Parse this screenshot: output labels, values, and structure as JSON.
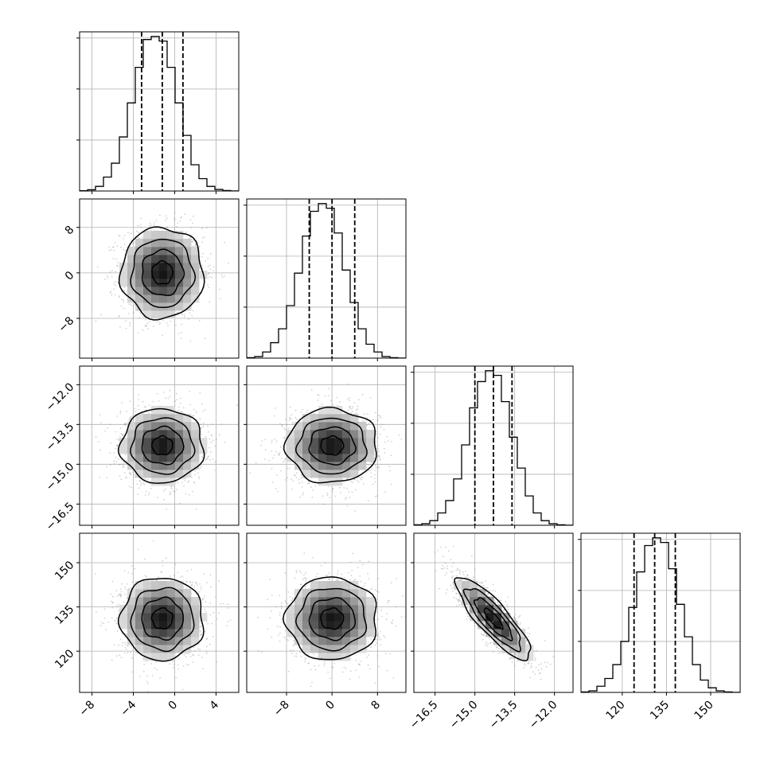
{
  "chart_data": {
    "type": "corner",
    "parameters": [
      {
        "index": 0,
        "range": [
          -9.2,
          6.2
        ],
        "ticks": [
          -8,
          -4,
          0,
          4
        ],
        "tick_labels": [
          "−8",
          "−4",
          "0",
          "4"
        ],
        "quantiles": [
          -3.2,
          -1.2,
          0.8
        ],
        "hist_bin_edges": [
          -9.2,
          -8.43,
          -7.66,
          -6.89,
          -6.12,
          -5.35,
          -4.58,
          -3.81,
          -3.04,
          -2.27,
          -1.5,
          -0.73,
          0.04,
          0.81,
          1.58,
          2.35,
          3.12,
          3.89,
          4.66,
          5.43,
          6.2
        ],
        "hist_values": [
          0.2,
          0.8,
          3,
          9,
          18,
          35,
          57,
          80,
          98,
          100,
          97,
          80,
          57,
          36,
          17,
          8,
          3,
          1,
          0.3,
          0.05
        ]
      },
      {
        "index": 1,
        "range": [
          -15,
          13
        ],
        "ticks": [
          -8,
          0,
          8
        ],
        "tick_labels": [
          "−8",
          "0",
          "8"
        ],
        "quantiles": [
          -4,
          0,
          4
        ],
        "hist_bin_edges": [
          -15,
          -13.6,
          -12.2,
          -10.8,
          -9.4,
          -8,
          -6.6,
          -5.2,
          -3.8,
          -2.4,
          -1,
          0.4,
          1.8,
          3.2,
          4.6,
          6,
          7.4,
          8.8,
          10.2,
          11.6,
          13
        ],
        "hist_values": [
          0.3,
          1,
          4,
          10,
          19,
          34,
          55,
          79,
          95,
          100,
          97,
          81,
          57,
          36,
          19,
          9,
          4,
          1,
          0.3,
          0.05
        ]
      },
      {
        "index": 2,
        "range": [
          -17.3,
          -11.3
        ],
        "ticks": [
          -16.5,
          -15.0,
          -13.5,
          -12.0
        ],
        "tick_labels": [
          "−16.5",
          "−15.0",
          "−13.5",
          "−12.0"
        ],
        "quantiles": [
          -15.0,
          -14.3,
          -13.6
        ],
        "hist_bin_edges": [
          -17.3,
          -17.0,
          -16.7,
          -16.4,
          -16.1,
          -15.8,
          -15.5,
          -15.2,
          -14.9,
          -14.6,
          -14.3,
          -14.0,
          -13.7,
          -13.4,
          -13.1,
          -12.8,
          -12.5,
          -12.2,
          -11.9,
          -11.6,
          -11.3
        ],
        "hist_values": [
          0.3,
          1,
          3,
          8,
          16,
          30,
          52,
          76,
          93,
          100,
          97,
          80,
          57,
          37,
          19,
          8,
          3,
          1,
          0.3,
          0.05
        ]
      },
      {
        "index": 3,
        "range": [
          106,
          160
        ],
        "ticks": [
          120,
          135,
          150
        ],
        "tick_labels": [
          "120",
          "135",
          "150"
        ],
        "quantiles": [
          124,
          131,
          138
        ],
        "hist_bin_edges": [
          106,
          108.7,
          111.4,
          114.1,
          116.8,
          119.5,
          122.2,
          124.9,
          127.6,
          130.3,
          133,
          135.7,
          138.4,
          141.1,
          143.8,
          146.5,
          149.2,
          151.9,
          154.6,
          157.3,
          160
        ],
        "hist_values": [
          0.3,
          1,
          4,
          9,
          18,
          33,
          55,
          78,
          95,
          100,
          97,
          80,
          57,
          36,
          18,
          8,
          3,
          1,
          0.3,
          0.05
        ]
      }
    ],
    "correlations": [
      [
        1,
        0,
        0,
        0
      ],
      [
        0,
        1,
        0,
        0
      ],
      [
        0,
        0,
        1,
        -0.85
      ],
      [
        0,
        0,
        -0.85,
        1
      ]
    ],
    "centers": [
      -1.2,
      0,
      -14.3,
      131
    ],
    "sigmas": [
      2.0,
      4.0,
      0.7,
      7.0
    ],
    "contour_levels_sigma": [
      0.5,
      1.0,
      1.5,
      2.0
    ],
    "scatter_color": "#7f7f7f",
    "line_color": "#000000",
    "grid": true
  }
}
